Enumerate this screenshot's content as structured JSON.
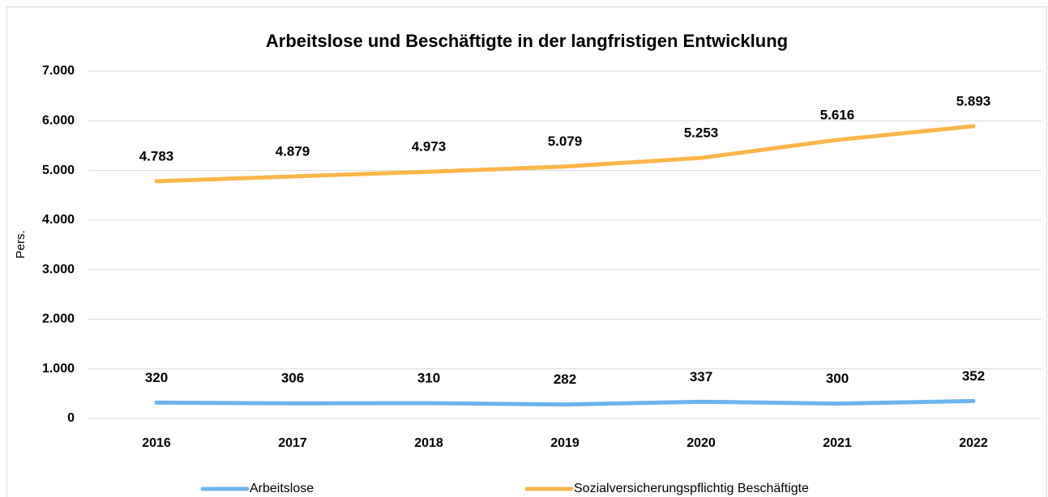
{
  "chart_data": {
    "type": "line",
    "title": "Arbeitslose und Beschäftigte in der langfristigen Entwicklung",
    "y_label": "Pers.",
    "categories": [
      "2016",
      "2017",
      "2018",
      "2019",
      "2020",
      "2021",
      "2022"
    ],
    "series": [
      {
        "name": "Arbeitslose",
        "color": "#6cb4ee",
        "values": [
          320,
          306,
          310,
          282,
          337,
          300,
          352
        ]
      },
      {
        "name": "Sozialversicherungspflichtig Beschäftigte",
        "color": "#fbb54a",
        "values": [
          4783,
          4879,
          4973,
          5079,
          5253,
          5616,
          5893
        ],
        "value_labels": [
          "4.783",
          "4.879",
          "4.973",
          "5.079",
          "5.253",
          "5.616",
          "5.893"
        ]
      }
    ],
    "ylim": [
      0,
      7000
    ],
    "yticks": [
      0,
      {
        "value": 1000,
        "label": "1.000"
      },
      {
        "value": 2000,
        "label": "2.000"
      },
      {
        "value": 3000,
        "label": "3.000"
      },
      {
        "value": 4000,
        "label": "4.000"
      },
      {
        "value": 5000,
        "label": "5.000"
      },
      {
        "value": 6000,
        "label": "6.000"
      },
      {
        "value": 7000,
        "label": "7.000"
      }
    ],
    "grid": true,
    "legend": "bottom"
  }
}
